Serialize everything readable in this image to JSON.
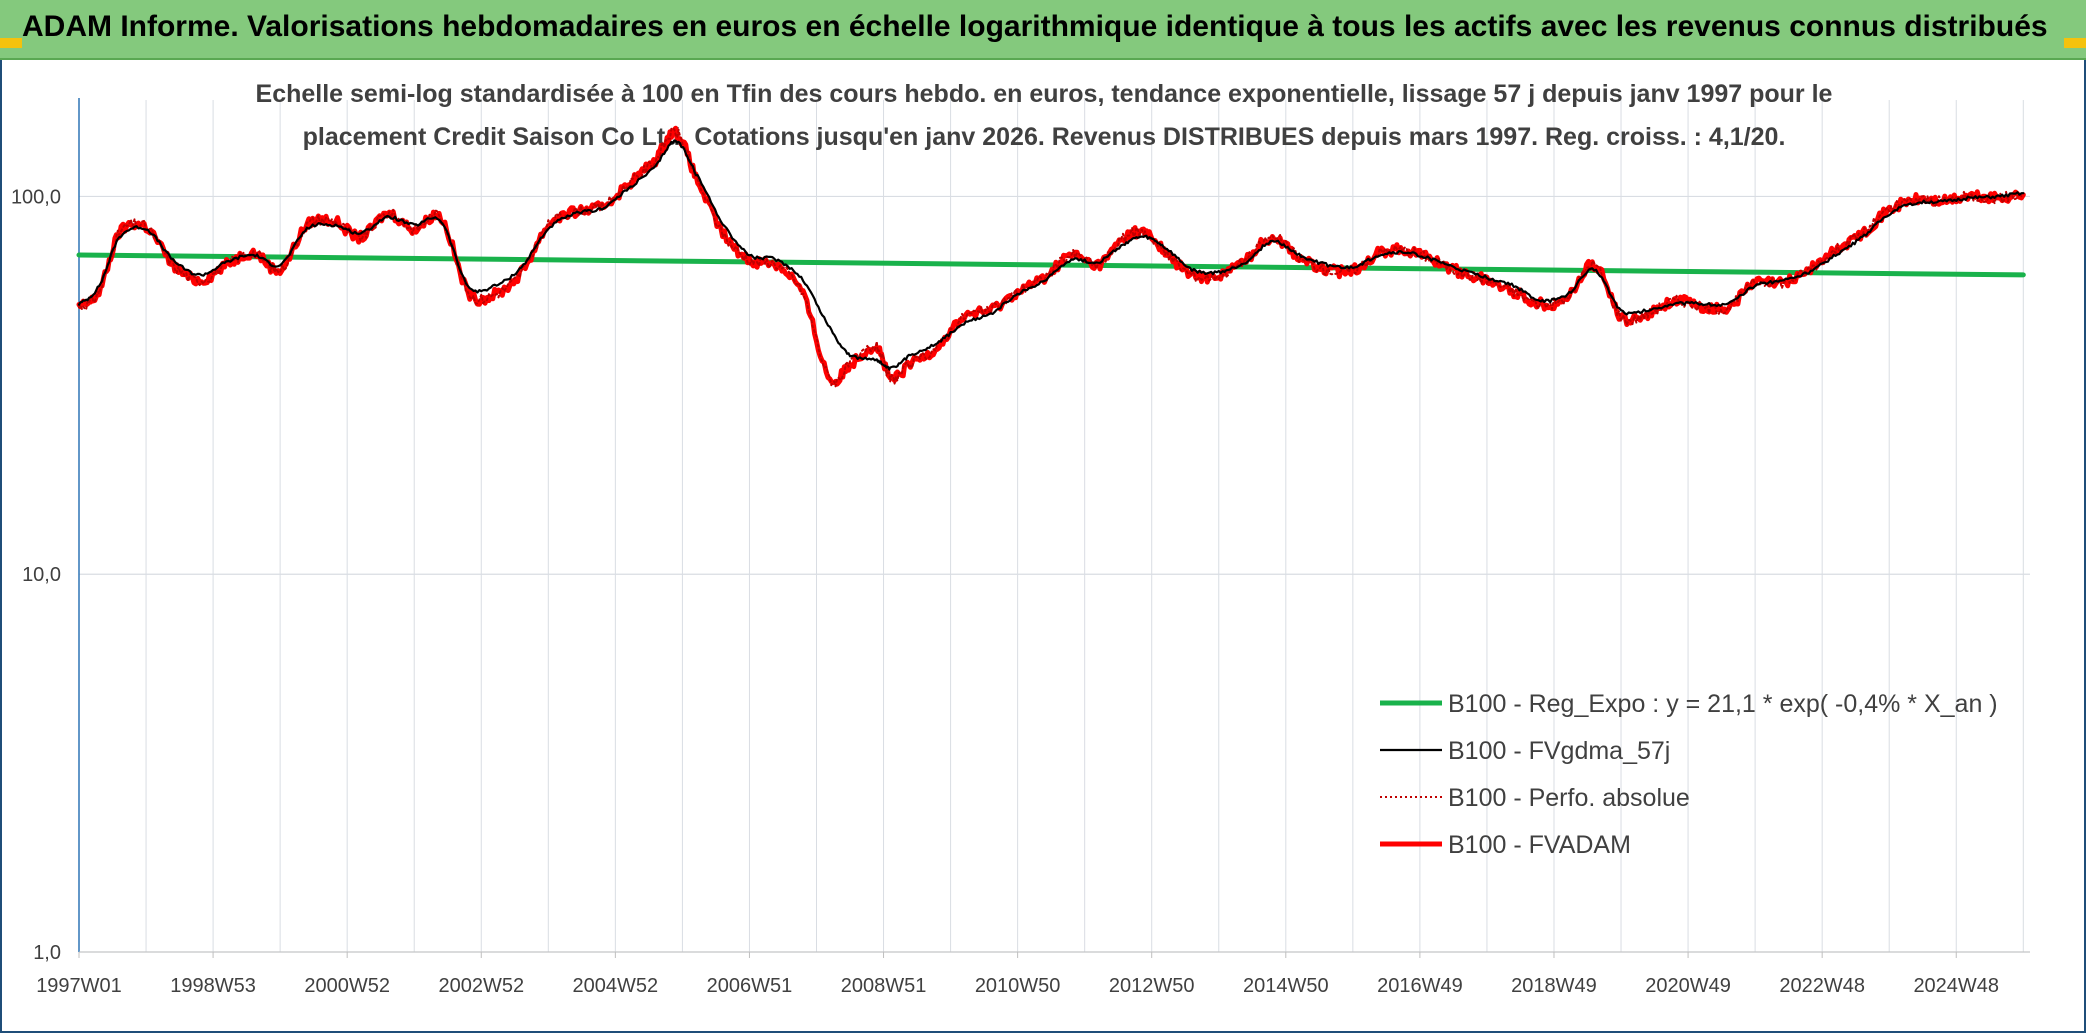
{
  "banner": {
    "title": "ADAM Informe. Valorisations hebdomadaires en euros en échelle logarithmique identique à tous les actifs avec les revenus connus distribués",
    "color": "#84c97d"
  },
  "chart_data": {
    "type": "line",
    "title_lines": [
      "Echelle semi-log standardisée à 100 en Tfin des cours hebdo. en euros, tendance exponentielle, lissage 57 j depuis janv 1997 pour le",
      "placement Credit Saison Co Ltd. Cotations jusqu'en janv 2026. Revenus DISTRIBUES depuis mars 1997. Reg. croiss. : 4,1/20."
    ],
    "y_scale": "log",
    "ylim": [
      1,
      180
    ],
    "y_ticks": [
      {
        "value": 1,
        "label": "1,0"
      },
      {
        "value": 10,
        "label": "10,0"
      },
      {
        "value": 100,
        "label": "100,0"
      }
    ],
    "xlim": [
      1997.0,
      2026.1
    ],
    "x_ticks": [
      {
        "value": 1997.0,
        "label": "1997W01"
      },
      {
        "value": 1999.0,
        "label": "1998W53"
      },
      {
        "value": 2001.0,
        "label": "2000W52"
      },
      {
        "value": 2003.0,
        "label": "2002W52"
      },
      {
        "value": 2005.0,
        "label": "2004W52"
      },
      {
        "value": 2007.0,
        "label": "2006W51"
      },
      {
        "value": 2009.0,
        "label": "2008W51"
      },
      {
        "value": 2011.0,
        "label": "2010W50"
      },
      {
        "value": 2013.0,
        "label": "2012W50"
      },
      {
        "value": 2015.0,
        "label": "2014W50"
      },
      {
        "value": 2017.0,
        "label": "2016W49"
      },
      {
        "value": 2019.0,
        "label": "2018W49"
      },
      {
        "value": 2021.0,
        "label": "2020W49"
      },
      {
        "value": 2023.0,
        "label": "2022W48"
      },
      {
        "value": 2025.0,
        "label": "2024W48"
      }
    ],
    "grid": "vertical and horizontal",
    "legend_position": "bottom-right",
    "x_key": [
      1997.0,
      1997.3,
      1997.6,
      1998.0,
      1998.4,
      1998.8,
      1999.2,
      1999.6,
      2000.0,
      2000.4,
      2000.8,
      2001.2,
      2001.6,
      2002.0,
      2002.4,
      2002.8,
      2003.2,
      2003.6,
      2004.0,
      2004.4,
      2004.8,
      2005.2,
      2005.6,
      2005.9,
      2006.2,
      2006.6,
      2007.0,
      2007.4,
      2007.8,
      2008.2,
      2008.5,
      2008.9,
      2009.1,
      2009.4,
      2009.8,
      2010.2,
      2010.6,
      2011.0,
      2011.4,
      2011.8,
      2012.2,
      2012.6,
      2012.9,
      2013.2,
      2013.6,
      2014.0,
      2014.4,
      2014.8,
      2015.2,
      2015.6,
      2016.0,
      2016.4,
      2016.8,
      2017.2,
      2017.6,
      2018.0,
      2018.4,
      2018.8,
      2019.2,
      2019.6,
      2020.0,
      2020.4,
      2020.8,
      2021.2,
      2021.6,
      2022.0,
      2022.4,
      2022.8,
      2023.2,
      2023.6,
      2024.0,
      2024.4,
      2024.8,
      2025.2,
      2025.6,
      2026.0
    ],
    "series": [
      {
        "name": "B100 - Reg_Expo : y = 21,1 * exp( -0,4% *  X_an )",
        "color": "#19b24b",
        "style": "solid-thick",
        "x": [
          1997.0,
          2026.0
        ],
        "values": [
          70,
          62
        ]
      },
      {
        "name": "B100 - FVgdma_57j",
        "color": "#000000",
        "style": "solid",
        "x_ref": "x_key",
        "values": [
          52,
          58,
          78,
          82,
          68,
          62,
          67,
          70,
          66,
          82,
          84,
          80,
          88,
          84,
          86,
          58,
          58,
          65,
          82,
          90,
          93,
          105,
          120,
          140,
          115,
          85,
          70,
          68,
          60,
          45,
          38,
          37,
          35,
          38,
          41,
          46,
          49,
          55,
          60,
          68,
          67,
          75,
          78,
          73,
          64,
          63,
          67,
          76,
          70,
          66,
          65,
          70,
          71,
          68,
          64,
          61,
          58,
          53,
          55,
          64,
          50,
          50,
          52,
          52,
          52,
          58,
          60,
          63,
          70,
          78,
          90,
          96,
          97,
          99,
          100,
          102
        ]
      },
      {
        "name": "B100 - Perfo. absolue",
        "color": "#c00000",
        "style": "dotted",
        "x_ref": "x_key",
        "values": [
          51,
          56,
          80,
          83,
          66,
          60,
          66,
          71,
          64,
          84,
          86,
          78,
          90,
          82,
          88,
          56,
          55,
          63,
          84,
          91,
          94,
          108,
          125,
          148,
          112,
          80,
          68,
          66,
          55,
          33,
          36,
          40,
          33,
          36,
          40,
          48,
          50,
          56,
          61,
          70,
          66,
          78,
          80,
          71,
          62,
          62,
          68,
          78,
          69,
          64,
          64,
          71,
          72,
          68,
          63,
          60,
          56,
          52,
          54,
          66,
          48,
          49,
          53,
          51,
          51,
          59,
          59,
          64,
          72,
          80,
          92,
          98,
          97,
          100,
          99,
          101
        ]
      },
      {
        "name": "B100 - FVADAM",
        "color": "#ff0000",
        "style": "solid-thick",
        "x_ref": "x_key",
        "values": [
          51,
          56,
          80,
          83,
          66,
          60,
          66,
          71,
          64,
          84,
          86,
          78,
          90,
          82,
          88,
          56,
          55,
          63,
          84,
          91,
          94,
          108,
          125,
          148,
          112,
          80,
          68,
          66,
          55,
          33,
          36,
          40,
          33,
          36,
          40,
          48,
          50,
          56,
          61,
          70,
          66,
          78,
          80,
          71,
          62,
          62,
          68,
          78,
          69,
          64,
          64,
          71,
          72,
          68,
          63,
          60,
          56,
          52,
          54,
          66,
          48,
          49,
          53,
          51,
          51,
          59,
          59,
          64,
          72,
          80,
          92,
          98,
          97,
          100,
          99,
          101
        ]
      }
    ]
  }
}
